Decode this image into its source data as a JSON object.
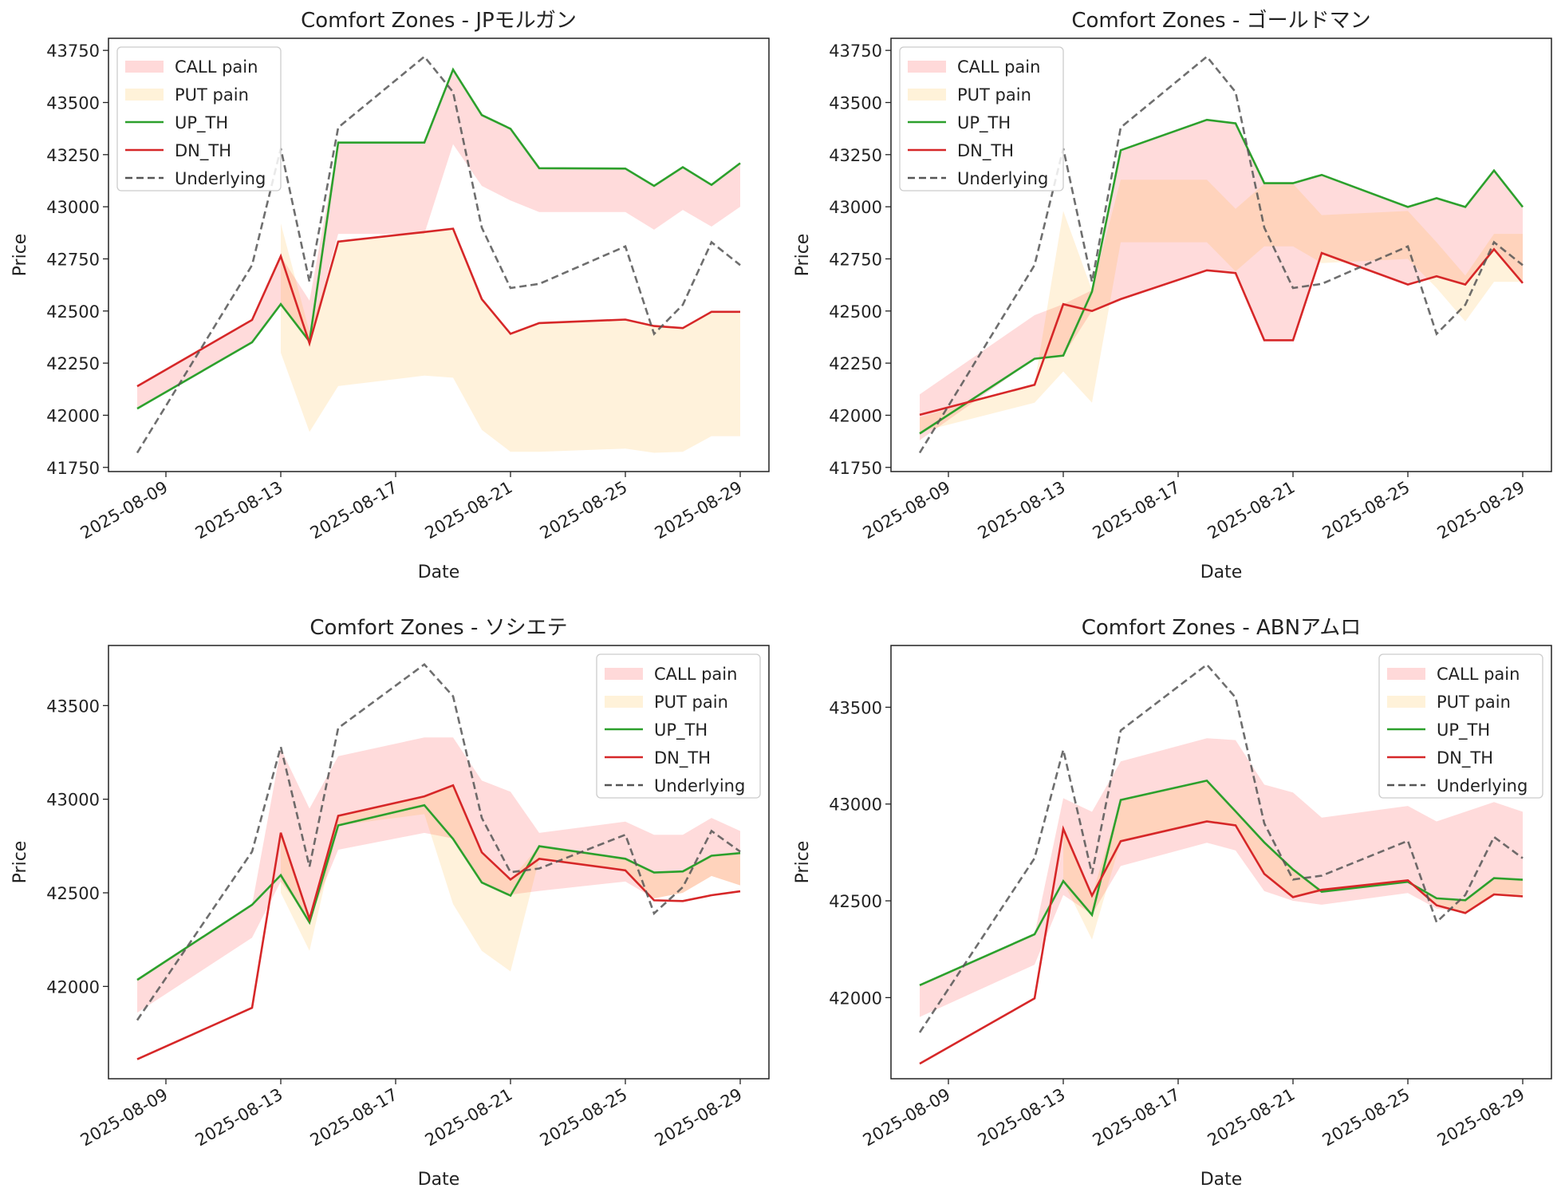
{
  "colors": {
    "call_pain": "#ff0000",
    "put_pain": "#ffa500",
    "up_th": "#2ca02c",
    "dn_th": "#d62728",
    "underlying": "#555555"
  },
  "chart_data": [
    {
      "type": "line",
      "title": "Comfort Zones - JPモルガン",
      "xlabel": "Date",
      "ylabel": "Price",
      "ylim": [
        41730,
        43808
      ],
      "xlim": [
        "2025-08-07",
        "2025-08-30"
      ],
      "yticks": [
        41750,
        42000,
        42250,
        42500,
        42750,
        43000,
        43250,
        43500,
        43750
      ],
      "xticks": [
        "2025-08-09",
        "2025-08-13",
        "2025-08-17",
        "2025-08-21",
        "2025-08-25",
        "2025-08-29"
      ],
      "legend_position": "upper-left",
      "grid": false,
      "x": [
        "2025-08-08",
        "2025-08-12",
        "2025-08-13",
        "2025-08-14",
        "2025-08-15",
        "2025-08-18",
        "2025-08-19",
        "2025-08-20",
        "2025-08-21",
        "2025-08-22",
        "2025-08-25",
        "2025-08-26",
        "2025-08-27",
        "2025-08-28",
        "2025-08-29"
      ],
      "bands": [
        {
          "name": "CALL pain",
          "lower": [
            42032,
            42350,
            42533,
            42354,
            42870,
            42870,
            43300,
            43100,
            43030,
            42975,
            42975,
            42890,
            42985,
            42905,
            43000
          ],
          "upper": [
            42139,
            42457,
            42763,
            42550,
            43308,
            43308,
            43658,
            43440,
            43374,
            43185,
            43183,
            43100,
            43190,
            43105,
            43209
          ]
        },
        {
          "name": "PUT pain",
          "lower": [
            null,
            null,
            42300,
            41920,
            42140,
            42190,
            42180,
            41930,
            41825,
            41825,
            41840,
            41820,
            41825,
            41900,
            41900
          ],
          "upper": [
            null,
            null,
            42920,
            42400,
            42833,
            42879,
            42895,
            42557,
            42391,
            42442,
            42459,
            42428,
            42418,
            42496,
            42496
          ]
        }
      ],
      "series": [
        {
          "name": "UP_TH",
          "values": [
            42032,
            42350,
            42533,
            42354,
            43308,
            43308,
            43658,
            43440,
            43374,
            43185,
            43183,
            43100,
            43190,
            43105,
            43209
          ]
        },
        {
          "name": "DN_TH",
          "values": [
            42139,
            42457,
            42763,
            42345,
            42833,
            42879,
            42895,
            42557,
            42391,
            42442,
            42459,
            42428,
            42418,
            42496,
            42496
          ]
        },
        {
          "name": "Underlying",
          "values": [
            41820,
            42720,
            43280,
            42640,
            43380,
            43720,
            43550,
            42900,
            42610,
            42630,
            42810,
            42390,
            42530,
            42830,
            42720
          ]
        }
      ]
    },
    {
      "type": "line",
      "title": "Comfort Zones - ゴールドマン",
      "xlabel": "Date",
      "ylabel": "Price",
      "ylim": [
        41730,
        43808
      ],
      "xlim": [
        "2025-08-07",
        "2025-08-30"
      ],
      "yticks": [
        41750,
        42000,
        42250,
        42500,
        42750,
        43000,
        43250,
        43500,
        43750
      ],
      "xticks": [
        "2025-08-09",
        "2025-08-13",
        "2025-08-17",
        "2025-08-21",
        "2025-08-25",
        "2025-08-29"
      ],
      "legend_position": "upper-left",
      "grid": false,
      "x": [
        "2025-08-08",
        "2025-08-12",
        "2025-08-13",
        "2025-08-14",
        "2025-08-15",
        "2025-08-18",
        "2025-08-19",
        "2025-08-20",
        "2025-08-21",
        "2025-08-22",
        "2025-08-25",
        "2025-08-26",
        "2025-08-27",
        "2025-08-28",
        "2025-08-29"
      ],
      "bands": [
        {
          "name": "CALL pain",
          "lower": [
            41880,
            42270,
            42286,
            42500,
            42557,
            42695,
            42682,
            42360,
            42360,
            42778,
            42627,
            42667,
            42627,
            42796,
            42634
          ],
          "upper": [
            42100,
            42480,
            42533,
            42600,
            43271,
            43417,
            43400,
            43113,
            43113,
            43153,
            42999,
            43041,
            42999,
            43174,
            42999
          ]
        },
        {
          "name": "PUT pain",
          "lower": [
            41920,
            42060,
            42210,
            42060,
            42830,
            42830,
            42690,
            42810,
            42810,
            42730,
            42750,
            42610,
            42450,
            42640,
            42640
          ],
          "upper": [
            41990,
            42150,
            42980,
            42600,
            43130,
            43130,
            42990,
            43110,
            43110,
            42960,
            42980,
            42830,
            42670,
            42870,
            42870
          ]
        }
      ],
      "series": [
        {
          "name": "UP_TH",
          "values": [
            41912,
            42271,
            42286,
            42593,
            43271,
            43417,
            43400,
            43113,
            43113,
            43153,
            42999,
            43041,
            42999,
            43174,
            42999
          ]
        },
        {
          "name": "DN_TH",
          "values": [
            42002,
            42146,
            42533,
            42500,
            42557,
            42695,
            42682,
            42360,
            42360,
            42778,
            42627,
            42667,
            42627,
            42796,
            42634
          ]
        },
        {
          "name": "Underlying",
          "values": [
            41820,
            42720,
            43280,
            42640,
            43380,
            43720,
            43550,
            42900,
            42610,
            42630,
            42810,
            42390,
            42530,
            42830,
            42720
          ]
        }
      ]
    },
    {
      "type": "line",
      "title": "Comfort Zones - ソシエテ",
      "xlabel": "Date",
      "ylabel": "Price",
      "ylim": [
        41507,
        43821
      ],
      "xlim": [
        "2025-08-07",
        "2025-08-30"
      ],
      "yticks": [
        42000,
        42500,
        43000,
        43500
      ],
      "xticks": [
        "2025-08-09",
        "2025-08-13",
        "2025-08-17",
        "2025-08-21",
        "2025-08-25",
        "2025-08-29"
      ],
      "legend_position": "upper-right",
      "grid": false,
      "x": [
        "2025-08-08",
        "2025-08-12",
        "2025-08-13",
        "2025-08-14",
        "2025-08-15",
        "2025-08-18",
        "2025-08-19",
        "2025-08-20",
        "2025-08-21",
        "2025-08-22",
        "2025-08-25",
        "2025-08-26",
        "2025-08-27",
        "2025-08-28",
        "2025-08-29"
      ],
      "bands": [
        {
          "name": "CALL pain",
          "lower": [
            41860,
            42260,
            42560,
            42360,
            42730,
            42820,
            42790,
            42560,
            42490,
            42510,
            42560,
            42470,
            42500,
            42590,
            42540
          ],
          "upper": [
            42035,
            42436,
            43270,
            42950,
            43230,
            43330,
            43330,
            43100,
            43040,
            42820,
            42880,
            42810,
            42810,
            42900,
            42830
          ]
        },
        {
          "name": "PUT pain",
          "lower": [
            null,
            null,
            42500,
            42190,
            42860,
            42920,
            42440,
            42190,
            42080,
            42680,
            42620,
            42470,
            42500,
            42590,
            42540
          ],
          "upper": [
            null,
            null,
            42821,
            42360,
            42911,
            43015,
            43074,
            42716,
            42571,
            42749,
            42682,
            42608,
            42614,
            42698,
            42712
          ]
        }
      ],
      "series": [
        {
          "name": "UP_TH",
          "values": [
            42035,
            42436,
            42594,
            42342,
            42860,
            42968,
            42788,
            42555,
            42485,
            42749,
            42682,
            42608,
            42614,
            42698,
            42712
          ]
        },
        {
          "name": "DN_TH",
          "values": [
            41611,
            41886,
            42821,
            42360,
            42911,
            43015,
            43074,
            42716,
            42571,
            42682,
            42620,
            42460,
            42456,
            42487,
            42508
          ]
        },
        {
          "name": "Underlying",
          "values": [
            41820,
            42720,
            43280,
            42640,
            43380,
            43720,
            43550,
            42900,
            42610,
            42630,
            42810,
            42390,
            42530,
            42830,
            42720
          ]
        }
      ]
    },
    {
      "type": "line",
      "title": "Comfort Zones - ABNアムロ",
      "xlabel": "Date",
      "ylabel": "Price",
      "ylim": [
        41581,
        43819
      ],
      "xlim": [
        "2025-08-07",
        "2025-08-30"
      ],
      "yticks": [
        42000,
        42500,
        43000,
        43500
      ],
      "xticks": [
        "2025-08-09",
        "2025-08-13",
        "2025-08-17",
        "2025-08-21",
        "2025-08-25",
        "2025-08-29"
      ],
      "legend_position": "upper-right",
      "grid": false,
      "x": [
        "2025-08-08",
        "2025-08-12",
        "2025-08-13",
        "2025-08-14",
        "2025-08-15",
        "2025-08-18",
        "2025-08-19",
        "2025-08-20",
        "2025-08-21",
        "2025-08-22",
        "2025-08-25",
        "2025-08-26",
        "2025-08-27",
        "2025-08-28",
        "2025-08-29"
      ],
      "bands": [
        {
          "name": "CALL pain",
          "lower": [
            41900,
            42170,
            42530,
            42430,
            42680,
            42800,
            42760,
            42550,
            42500,
            42480,
            42540,
            42460,
            42440,
            42540,
            42530
          ],
          "upper": [
            42064,
            42327,
            43030,
            42960,
            43220,
            43340,
            43330,
            43100,
            43060,
            42930,
            42990,
            42910,
            42960,
            43010,
            42960
          ]
        },
        {
          "name": "PUT pain",
          "lower": [
            null,
            null,
            42600,
            42300,
            42808,
            42910,
            42890,
            42639,
            42519,
            42547,
            42598,
            42477,
            42437,
            42533,
            42523
          ],
          "upper": [
            null,
            null,
            42872,
            42527,
            43021,
            43121,
            42962,
            42802,
            42662,
            42557,
            42606,
            42513,
            42503,
            42617,
            42609
          ]
        }
      ],
      "series": [
        {
          "name": "UP_TH",
          "values": [
            42064,
            42327,
            42602,
            42427,
            43021,
            43121,
            42962,
            42802,
            42662,
            42547,
            42598,
            42513,
            42503,
            42617,
            42609
          ]
        },
        {
          "name": "DN_TH",
          "values": [
            41659,
            41996,
            42872,
            42527,
            42808,
            42910,
            42890,
            42639,
            42519,
            42557,
            42606,
            42477,
            42437,
            42533,
            42523
          ]
        },
        {
          "name": "Underlying",
          "values": [
            41820,
            42720,
            43280,
            42640,
            43380,
            43720,
            43550,
            42900,
            42610,
            42630,
            42810,
            42390,
            42530,
            42830,
            42720
          ]
        }
      ]
    }
  ]
}
